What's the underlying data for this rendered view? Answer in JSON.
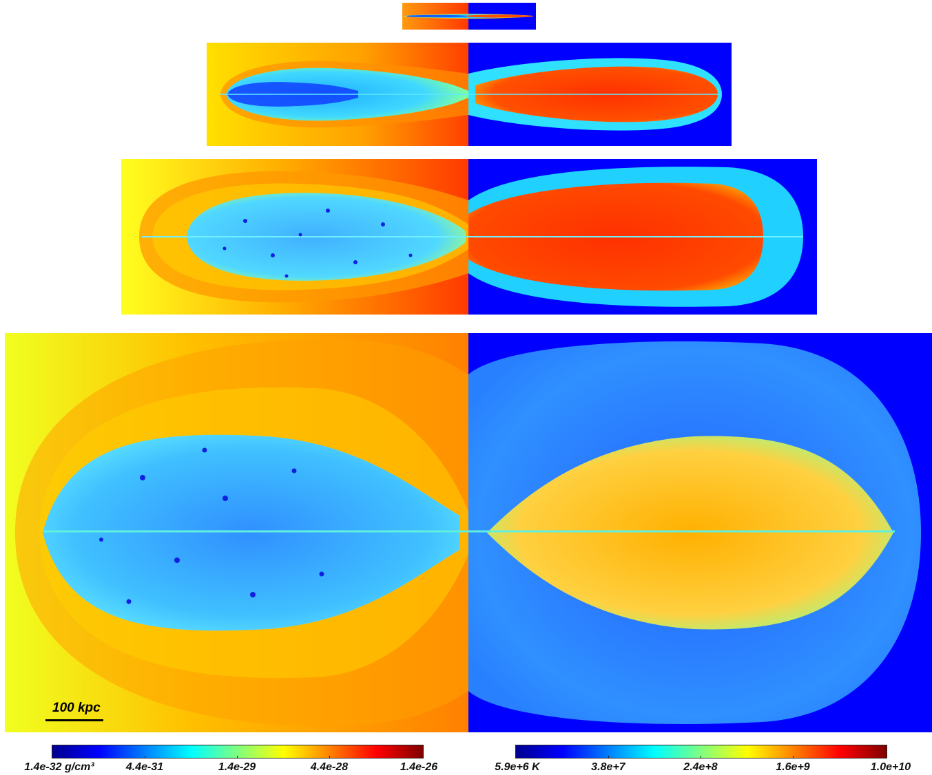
{
  "scalebar": {
    "label": "100 kpc"
  },
  "colorbars": {
    "density": {
      "ticks": [
        "1.4e-32 g/cm³",
        "4.4e-31",
        "1.4e-29",
        "4.4e-28",
        "1.4e-26"
      ]
    },
    "temperature": {
      "ticks": [
        "5.9e+6 K",
        "3.8e+7",
        "2.4e+8",
        "1.6e+9",
        "1.0e+10"
      ]
    }
  },
  "colors": {
    "background_density_left": "#ffff22",
    "background_density_right": "#ff3a00",
    "background_temperature": "#0000ff",
    "lobe_density": "#40a8ff",
    "lobe_temperature": "#ff3c00",
    "cocoon_temperature": "#30e0ff"
  }
}
